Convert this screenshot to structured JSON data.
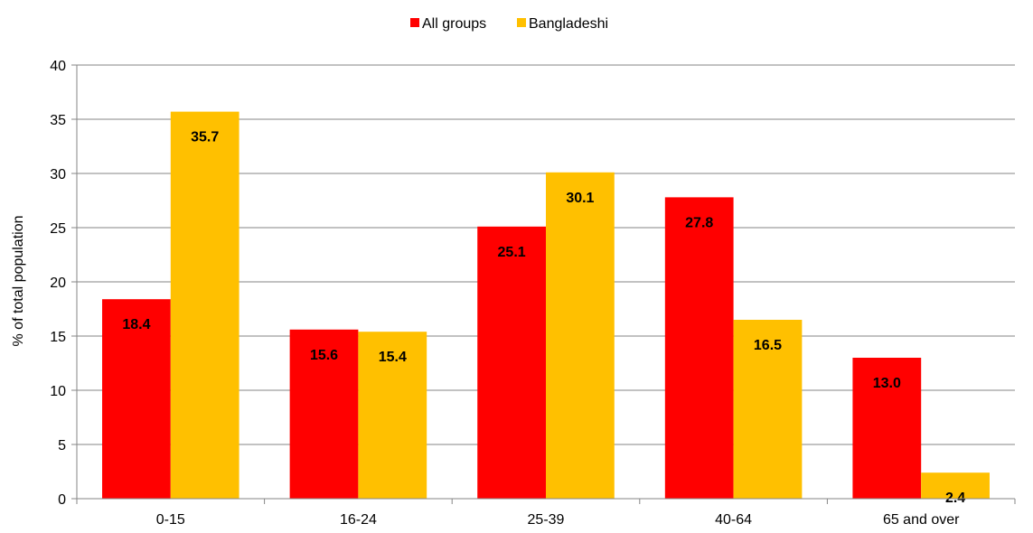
{
  "chart_data": {
    "type": "bar",
    "title": "",
    "xlabel": "",
    "ylabel": "% of total population",
    "categories": [
      "0-15",
      "16-24",
      "25-39",
      "40-64",
      "65 and over"
    ],
    "series": [
      {
        "name": "All groups",
        "color": "#ff0000",
        "values": [
          18.4,
          15.6,
          25.1,
          27.8,
          13.0
        ],
        "labels": [
          "18.4",
          "15.6",
          "25.1",
          "27.8",
          "13.0"
        ]
      },
      {
        "name": "Bangladeshi",
        "color": "#ffc000",
        "values": [
          35.7,
          15.4,
          30.1,
          16.5,
          2.4
        ],
        "labels": [
          "35.7",
          "15.4",
          "30.1",
          "16.5",
          "2.4"
        ]
      }
    ],
    "ylim": [
      0,
      40
    ],
    "yticks": [
      0,
      5,
      10,
      15,
      20,
      25,
      30,
      35,
      40
    ],
    "grid": true,
    "legend_position": "top-center"
  }
}
